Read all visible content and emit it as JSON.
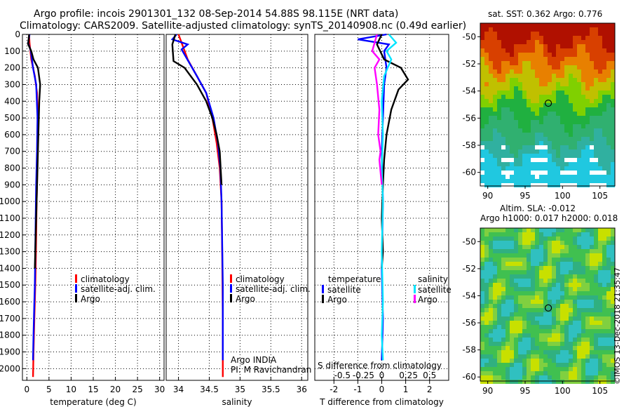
{
  "title": {
    "line1": "Argo profile: incois 2901301_132 08-Sep-2014 54.88S 98.115E (NRT data)",
    "line2": "Climatology: CARS2009. Satellite-adjusted climatology: synTS_20140908.nc (0.49d earlier)"
  },
  "credit": "Argo INDIA",
  "pi": "PI: M Ravichandran",
  "footer": "©IMOS 13-Dec-2018 21:35:47",
  "colors": {
    "climatology": "#ff0000",
    "satellite": "#0000ff",
    "argo": "#000000",
    "sat_diff": "#00e5ff",
    "argo_sdiff": "#ff00ff"
  },
  "chart_data": [
    {
      "type": "line",
      "name": "temperature-profile",
      "xlabel": "temperature (deg C)",
      "ylabel": "",
      "xlim": [
        -1,
        31
      ],
      "ylim": [
        2070,
        0
      ],
      "xticks": [
        0,
        5,
        10,
        15,
        20,
        25,
        30
      ],
      "yticks": [
        0,
        100,
        200,
        300,
        400,
        500,
        600,
        700,
        800,
        900,
        1000,
        1100,
        1200,
        1300,
        1400,
        1500,
        1600,
        1700,
        1800,
        1900,
        2000
      ],
      "legend": [
        "climatology",
        "satellite-adj. clim.",
        "Argo"
      ],
      "series": [
        {
          "name": "climatology",
          "color": "#ff0000",
          "x": [
            0.5,
            0.6,
            1.0,
            1.8,
            2.3,
            2.5,
            2.4,
            2.3,
            2.2,
            2.1,
            2.0,
            1.9,
            1.8,
            1.7,
            1.6,
            1.5,
            1.4
          ],
          "y": [
            0,
            50,
            150,
            250,
            350,
            500,
            700,
            900,
            1000,
            1200,
            1400,
            1500,
            1600,
            1700,
            1800,
            1900,
            2050
          ]
        },
        {
          "name": "satellite-adj. clim.",
          "color": "#0000ff",
          "x": [
            0.6,
            0.3,
            0.9,
            1.4,
            2.1,
            2.4,
            2.3,
            2.1,
            2.0,
            1.9,
            1.8,
            1.7,
            1.6,
            1.5,
            1.4
          ],
          "y": [
            0,
            50,
            100,
            200,
            300,
            500,
            700,
            900,
            1100,
            1300,
            1500,
            1600,
            1700,
            1800,
            1950
          ]
        },
        {
          "name": "Argo",
          "color": "#000000",
          "x": [
            0.5,
            0.3,
            1.0,
            1.5,
            2.5,
            3.0,
            2.8,
            2.6,
            2.4,
            2.2,
            2.0,
            1.8
          ],
          "y": [
            0,
            60,
            100,
            150,
            200,
            300,
            400,
            600,
            800,
            1000,
            1200,
            1400
          ]
        }
      ]
    },
    {
      "type": "line",
      "name": "salinity-profile",
      "xlabel": "salinity",
      "xlim": [
        33.8,
        36.1
      ],
      "ylim": [
        2070,
        0
      ],
      "xticks": [
        34,
        34.5,
        35,
        35.5,
        36
      ],
      "xticklabels": [
        "34",
        "34.5",
        "35",
        "35.5",
        "36"
      ],
      "legend": [
        "climatology",
        "satellite-adj. clim.",
        "Argo"
      ],
      "series": [
        {
          "name": "climatology",
          "color": "#ff0000",
          "x": [
            34.0,
            34.05,
            34.15,
            34.3,
            34.45,
            34.55,
            34.62,
            34.67,
            34.7,
            34.71,
            34.72,
            34.72
          ],
          "y": [
            0,
            50,
            150,
            250,
            350,
            500,
            650,
            800,
            1000,
            1300,
            1700,
            2050
          ]
        },
        {
          "name": "satellite-adj. clim.",
          "color": "#0000ff",
          "x": [
            33.97,
            33.9,
            34.15,
            34.05,
            34.3,
            34.45,
            34.57,
            34.64,
            34.68,
            34.7,
            34.72,
            34.72
          ],
          "y": [
            0,
            30,
            60,
            90,
            250,
            350,
            500,
            650,
            800,
            1000,
            1500,
            1950
          ]
        },
        {
          "name": "Argo",
          "color": "#000000",
          "x": [
            33.95,
            33.9,
            33.92,
            34.1,
            34.3,
            34.45,
            34.55,
            34.62,
            34.67,
            34.7
          ],
          "y": [
            0,
            60,
            160,
            200,
            300,
            400,
            500,
            600,
            700,
            900
          ]
        }
      ]
    },
    {
      "type": "line",
      "name": "difference-profile",
      "xlabel": "T difference from climatology",
      "top_label": "S difference from climatology",
      "xlim": [
        -2.8,
        2.8
      ],
      "ylim": [
        2070,
        0
      ],
      "xticks": [
        -2,
        -1,
        0,
        1,
        2
      ],
      "xticklabels": [
        "-2",
        "-1",
        "0",
        "1",
        "2"
      ],
      "sticks": [
        -2,
        -1,
        0,
        1,
        2
      ],
      "sticklabels": [
        "-0.5",
        "-0.25",
        "0",
        "0.25",
        "0.5"
      ],
      "legend_titles": [
        "temperature",
        "salinity"
      ],
      "legend": [
        "satellite",
        "Argo",
        "satellite",
        "Argo"
      ],
      "series": [
        {
          "name": "T satellite",
          "color": "#0000ff",
          "x": [
            0.2,
            -1.0,
            0.3,
            0.1,
            0.2,
            0.1,
            0.05,
            0.0,
            0.05,
            0.0,
            0.05,
            0.0
          ],
          "y": [
            0,
            30,
            60,
            100,
            200,
            300,
            500,
            700,
            1000,
            1400,
            1700,
            1950
          ]
        },
        {
          "name": "T Argo",
          "color": "#000000",
          "x": [
            0.0,
            -0.2,
            0.1,
            0.8,
            1.1,
            0.7,
            0.4,
            0.2,
            0.1,
            0.05,
            0.0,
            0.05,
            0.0
          ],
          "y": [
            0,
            60,
            150,
            200,
            270,
            330,
            450,
            600,
            750,
            900,
            1100,
            1300,
            1400
          ]
        },
        {
          "name": "S satellite",
          "color": "#00e5ff",
          "x": [
            0.3,
            0.6,
            0.2,
            0.4,
            0.1,
            0.0,
            0.05,
            0.0,
            0.05,
            0.0,
            0.05,
            0.0,
            0.05
          ],
          "y": [
            0,
            50,
            100,
            150,
            250,
            400,
            600,
            800,
            1000,
            1300,
            1600,
            1800,
            1950
          ]
        },
        {
          "name": "S Argo",
          "color": "#ff00ff",
          "x": [
            -0.2,
            -0.4,
            -0.1,
            -0.3,
            -0.2,
            -0.1,
            -0.15,
            -0.05,
            -0.1,
            0.0
          ],
          "y": [
            0,
            100,
            150,
            200,
            300,
            450,
            600,
            700,
            750,
            900
          ]
        }
      ]
    },
    {
      "type": "heatmap",
      "name": "sst-map",
      "title": "sat. SST: 0.362 Argo: 0.776",
      "xlim": [
        89,
        107
      ],
      "ylim": [
        -61,
        -49
      ],
      "xticks": [
        90,
        95,
        100,
        105
      ],
      "yticks": [
        -50,
        -52,
        -54,
        -56,
        -58,
        -60
      ],
      "marker": {
        "lon": 98.1,
        "lat": -54.9
      }
    },
    {
      "type": "heatmap",
      "name": "sla-map",
      "title": "Altim. SLA: -0.012",
      "subtitle": "Argo h1000: 0.017 h2000: 0.018",
      "xlim": [
        89,
        107
      ],
      "ylim": [
        -60.3,
        -49
      ],
      "xticks": [
        90,
        95,
        100,
        105
      ],
      "yticks": [
        -50,
        -52,
        -54,
        -56,
        -58,
        -60
      ],
      "marker": {
        "lon": 98.1,
        "lat": -54.9
      }
    }
  ]
}
